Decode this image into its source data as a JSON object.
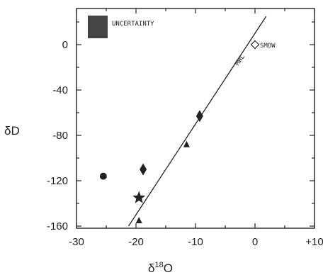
{
  "chart_data": {
    "type": "scatter",
    "title": "",
    "xlabel": "δ18O",
    "xlabel_base": "δ",
    "xlabel_sup": "18",
    "xlabel_tail": "O",
    "ylabel": "δD",
    "xlim": [
      -30,
      10
    ],
    "ylim": [
      -160,
      25
    ],
    "x_ticks": [
      {
        "value": -30,
        "label": "-30"
      },
      {
        "value": -20,
        "label": "-20"
      },
      {
        "value": -10,
        "label": "-10"
      },
      {
        "value": 0,
        "label": "0"
      },
      {
        "value": 10,
        "label": "+10"
      }
    ],
    "y_ticks": [
      {
        "value": 0,
        "label": "0"
      },
      {
        "value": -40,
        "label": "-40"
      },
      {
        "value": -80,
        "label": "-80"
      },
      {
        "value": -120,
        "label": "-120"
      },
      {
        "value": -160,
        "label": "-160"
      }
    ],
    "grid": false,
    "mwl": {
      "label": "MWL",
      "slope": 8,
      "intercept": 10
    },
    "legend": {
      "label": "UNCERTAINTY",
      "placement": "top-left"
    },
    "reference_point": {
      "label": "SMOW",
      "x": 0,
      "y": 0,
      "marker": "diamond-open"
    },
    "points": [
      {
        "x": -25.5,
        "y": -116,
        "marker": "circle"
      },
      {
        "x": -19.5,
        "y": -135,
        "marker": "star"
      },
      {
        "x": -18.8,
        "y": -110,
        "marker": "diamond"
      },
      {
        "x": -9.3,
        "y": -63,
        "marker": "diamond"
      },
      {
        "x": -11.5,
        "y": -88,
        "marker": "triangle"
      },
      {
        "x": -19.5,
        "y": -155,
        "marker": "triangle"
      }
    ],
    "colors": {
      "ink": "#222222",
      "legend_fill": "#444444",
      "background": "#ffffff"
    }
  }
}
